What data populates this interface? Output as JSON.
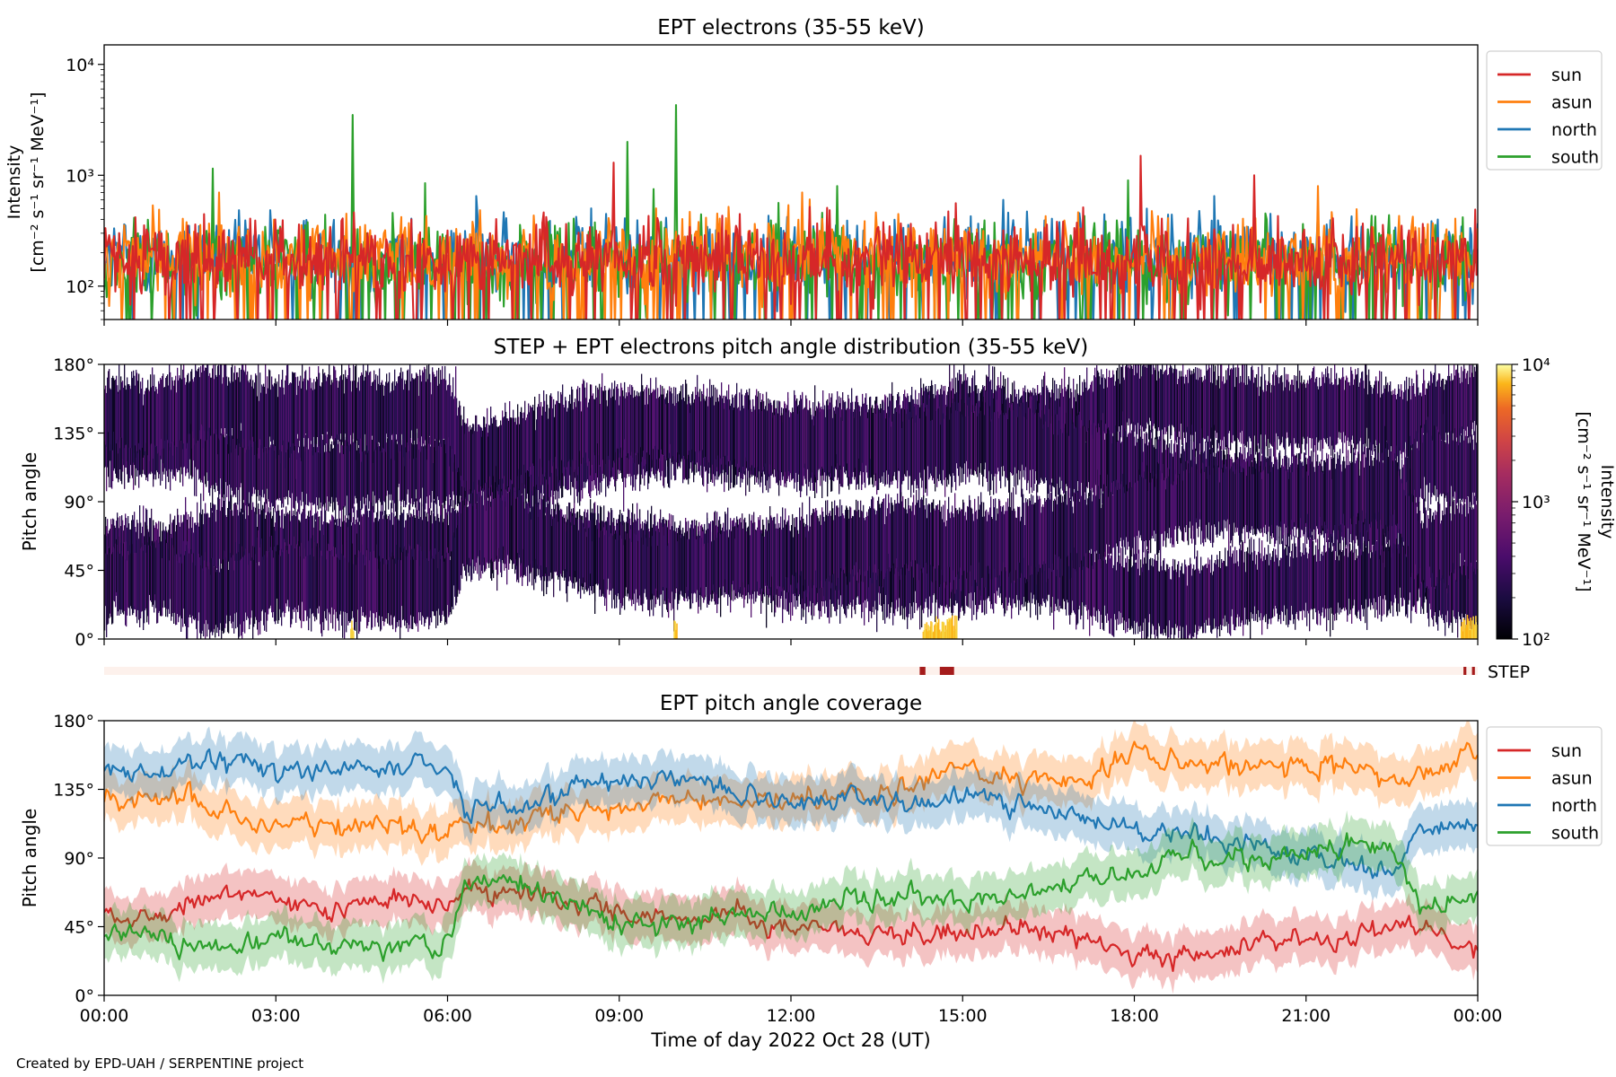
{
  "credit": "Created by EPD-UAH / SERPENTINE project",
  "colors": {
    "sun": "#d62728",
    "asun": "#ff7f0e",
    "north": "#1f77b4",
    "south": "#2ca02c",
    "step_flag": "#a51c1c",
    "step_band": "#fdf1ec"
  },
  "x_axis": {
    "label": "Time of day 2022 Oct 28 (UT)",
    "range_hours": [
      0,
      24
    ],
    "ticks": [
      {
        "v": 0,
        "label": "00:00"
      },
      {
        "v": 3,
        "label": "03:00"
      },
      {
        "v": 6,
        "label": "06:00"
      },
      {
        "v": 9,
        "label": "09:00"
      },
      {
        "v": 12,
        "label": "12:00"
      },
      {
        "v": 15,
        "label": "15:00"
      },
      {
        "v": 18,
        "label": "18:00"
      },
      {
        "v": 21,
        "label": "21:00"
      },
      {
        "v": 24,
        "label": "00:00"
      }
    ]
  },
  "chart_data": [
    {
      "type": "line",
      "title": "EPT electrons (35-55 keV)",
      "ylabel_line1": "Intensity",
      "ylabel_line2": "[cm⁻² s⁻¹ sr⁻¹ MeV⁻¹]",
      "yscale": "log",
      "ylim": [
        50,
        15000
      ],
      "yticks": [
        {
          "v": 100,
          "label": "10²"
        },
        {
          "v": 1000,
          "label": "10³"
        },
        {
          "v": 10000,
          "label": "10⁴"
        }
      ],
      "legend_position": "outside-right",
      "series": [
        {
          "name": "sun",
          "color": "#d62728",
          "baseline": 180,
          "spikes": [
            [
              8.9,
              1300
            ],
            [
              18.1,
              1500
            ],
            [
              20.1,
              1000
            ]
          ]
        },
        {
          "name": "asun",
          "color": "#ff7f0e",
          "baseline": 190,
          "spikes": [
            [
              2.0,
              700
            ],
            [
              12.2,
              700
            ],
            [
              21.2,
              800
            ]
          ]
        },
        {
          "name": "north",
          "color": "#1f77b4",
          "baseline": 190,
          "spikes": [
            [
              6.5,
              650
            ],
            [
              15.7,
              600
            ],
            [
              19.4,
              650
            ]
          ]
        },
        {
          "name": "south",
          "color": "#2ca02c",
          "baseline": 170,
          "spikes": [
            [
              1.9,
              1150
            ],
            [
              4.35,
              3500
            ],
            [
              5.6,
              850
            ],
            [
              9.15,
              2000
            ],
            [
              9.6,
              750
            ],
            [
              10.0,
              4300
            ],
            [
              12.8,
              800
            ],
            [
              17.9,
              900
            ]
          ]
        }
      ]
    },
    {
      "type": "heatmap",
      "title": "STEP + EPT electrons pitch angle distribution (35-55 keV)",
      "ylabel": "Pitch angle",
      "ylim": [
        0,
        180
      ],
      "yticks": [
        {
          "v": 0,
          "label": "0°"
        },
        {
          "v": 45,
          "label": "45°"
        },
        {
          "v": 90,
          "label": "90°"
        },
        {
          "v": 135,
          "label": "135°"
        },
        {
          "v": 180,
          "label": "180°"
        }
      ],
      "colorbar": {
        "label_line1": "Intensity",
        "label_line2": "[cm⁻² s⁻¹ sr⁻¹ MeV⁻¹]",
        "scale": "log",
        "range": [
          100,
          10000
        ],
        "ticks": [
          {
            "v": 100,
            "label": "10²"
          },
          {
            "v": 1000,
            "label": "10³"
          },
          {
            "v": 10000,
            "label": "10⁴"
          }
        ]
      },
      "step_flag": {
        "label": "STEP",
        "intervals_hours": [
          [
            14.25,
            14.35
          ],
          [
            14.6,
            14.85
          ],
          [
            23.75,
            23.8
          ],
          [
            23.9,
            23.95
          ]
        ]
      }
    },
    {
      "type": "line",
      "title": "EPT pitch angle coverage",
      "ylabel": "Pitch angle",
      "ylim": [
        0,
        180
      ],
      "yticks": [
        {
          "v": 0,
          "label": "0°"
        },
        {
          "v": 45,
          "label": "45°"
        },
        {
          "v": 90,
          "label": "90°"
        },
        {
          "v": 135,
          "label": "135°"
        },
        {
          "v": 180,
          "label": "180°"
        }
      ],
      "legend_position": "outside-right",
      "series": [
        {
          "name": "sun",
          "color": "#d62728",
          "band_halfwidth": 15,
          "t": [
            0,
            1,
            1.6,
            2,
            3,
            4,
            5,
            6,
            6.3,
            7,
            8,
            9,
            10,
            11,
            12,
            13,
            14,
            15,
            16,
            17,
            18,
            19,
            20,
            21,
            22,
            22.5,
            23,
            24
          ],
          "y": [
            55,
            52,
            58,
            68,
            60,
            58,
            62,
            62,
            68,
            70,
            62,
            55,
            50,
            52,
            42,
            42,
            40,
            44,
            46,
            40,
            28,
            25,
            35,
            38,
            40,
            45,
            42,
            28
          ]
        },
        {
          "name": "asun",
          "color": "#ff7f0e",
          "band_halfwidth": 15,
          "t": [
            0,
            1,
            1.6,
            2,
            3,
            4,
            5,
            6,
            6.3,
            7,
            8,
            9,
            10,
            11,
            12,
            13,
            14,
            15,
            16,
            17,
            18,
            19,
            20,
            21,
            22,
            22.5,
            23,
            24
          ],
          "y": [
            128,
            130,
            128,
            118,
            112,
            108,
            112,
            108,
            112,
            110,
            118,
            125,
            130,
            128,
            128,
            128,
            135,
            148,
            140,
            142,
            160,
            152,
            150,
            148,
            150,
            140,
            145,
            158
          ]
        },
        {
          "name": "north",
          "color": "#1f77b4",
          "band_halfwidth": 15,
          "t": [
            0,
            1,
            1.6,
            2,
            3,
            4,
            5,
            6,
            6.3,
            7,
            8,
            9,
            10,
            11,
            12,
            13,
            14,
            15,
            16,
            17,
            18,
            19,
            20,
            21,
            22,
            22.5,
            23,
            24
          ],
          "y": [
            148,
            145,
            155,
            155,
            145,
            150,
            148,
            150,
            118,
            122,
            135,
            140,
            140,
            135,
            128,
            130,
            125,
            130,
            128,
            118,
            110,
            105,
            100,
            92,
            82,
            80,
            115,
            110
          ]
        },
        {
          "name": "south",
          "color": "#2ca02c",
          "band_halfwidth": 15,
          "t": [
            0,
            1,
            1.6,
            2,
            3,
            4,
            5,
            6,
            6.3,
            7,
            8,
            9,
            10,
            11,
            12,
            13,
            14,
            15,
            16,
            17,
            18,
            19,
            20,
            21,
            22,
            22.5,
            23,
            24
          ],
          "y": [
            38,
            40,
            30,
            28,
            38,
            35,
            32,
            35,
            70,
            75,
            60,
            48,
            48,
            52,
            55,
            62,
            68,
            62,
            65,
            72,
            82,
            92,
            90,
            92,
            98,
            100,
            58,
            68
          ]
        }
      ]
    }
  ]
}
